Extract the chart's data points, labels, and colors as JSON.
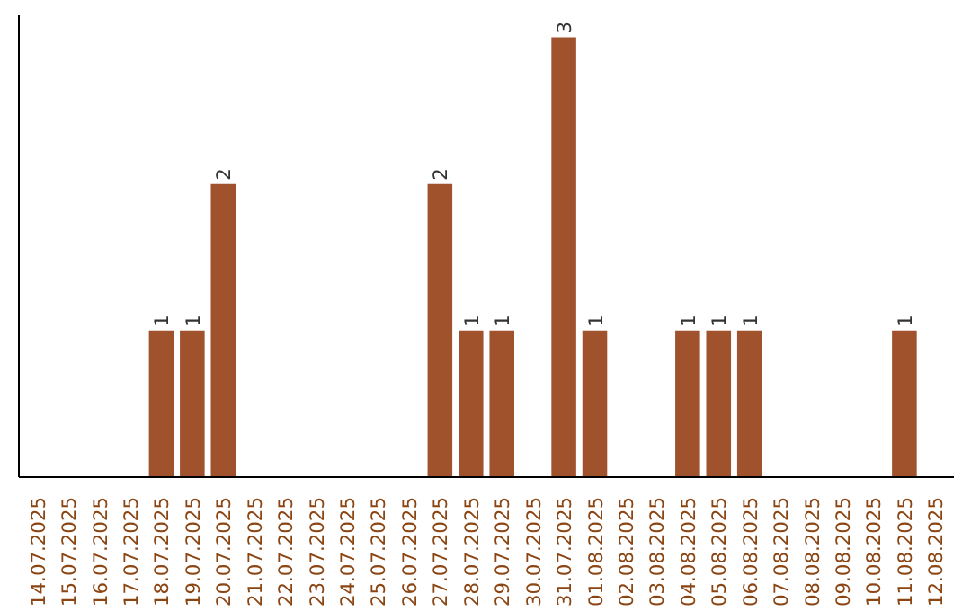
{
  "chart_data": {
    "type": "bar",
    "categories": [
      "14.07.2025",
      "15.07.2025",
      "16.07.2025",
      "17.07.2025",
      "18.07.2025",
      "19.07.2025",
      "20.07.2025",
      "21.07.2025",
      "22.07.2025",
      "23.07.2025",
      "24.07.2025",
      "25.07.2025",
      "26.07.2025",
      "27.07.2025",
      "28.07.2025",
      "29.07.2025",
      "30.07.2025",
      "31.07.2025",
      "01.08.2025",
      "02.08.2025",
      "03.08.2025",
      "04.08.2025",
      "05.08.2025",
      "06.08.2025",
      "07.08.2025",
      "08.08.2025",
      "09.08.2025",
      "10.08.2025",
      "11.08.2025",
      "12.08.2025"
    ],
    "values": [
      0,
      0,
      0,
      0,
      1,
      1,
      2,
      0,
      0,
      0,
      0,
      0,
      0,
      2,
      1,
      1,
      0,
      3,
      1,
      0,
      0,
      1,
      1,
      1,
      0,
      0,
      0,
      0,
      1,
      0
    ],
    "value_labels": [
      null,
      null,
      null,
      null,
      "1",
      "1",
      "2",
      null,
      null,
      null,
      null,
      null,
      null,
      "2",
      "1",
      "1",
      null,
      "3",
      "1",
      null,
      null,
      "1",
      "1",
      "1",
      null,
      null,
      null,
      null,
      "1",
      null
    ],
    "color": "#a0522d",
    "ylim": [
      0,
      3.15
    ],
    "tick_labels": "x"
  }
}
